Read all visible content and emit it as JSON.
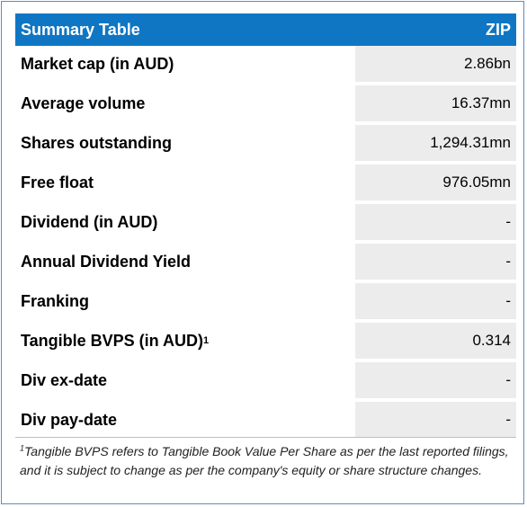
{
  "header": {
    "title": "Summary Table",
    "ticker": "ZIP"
  },
  "rows": [
    {
      "label": "Market cap (in AUD)",
      "value": "2.86bn"
    },
    {
      "label": "Average volume",
      "value": "16.37mn"
    },
    {
      "label": "Shares outstanding",
      "value": "1,294.31mn"
    },
    {
      "label": "Free float",
      "value": "976.05mn"
    },
    {
      "label": "Dividend (in AUD)",
      "value": "-"
    },
    {
      "label": "Annual Dividend Yield",
      "value": "-"
    },
    {
      "label": "Franking",
      "value": "-"
    },
    {
      "label": "Tangible BVPS (in AUD)",
      "label_sup": "1",
      "value": "0.314"
    },
    {
      "label": "Div ex-date",
      "value": "-"
    },
    {
      "label": "Div pay-date",
      "value": "-"
    }
  ],
  "footnote": {
    "marker": "1",
    "text": "Tangible BVPS refers to Tangible Book Value Per Share as per the last reported filings, and it is subject to change as per the company's equity or share structure changes."
  },
  "colors": {
    "header_bg": "#0f76c4",
    "value_bg": "#ececec",
    "border": "#5b8dc9"
  }
}
